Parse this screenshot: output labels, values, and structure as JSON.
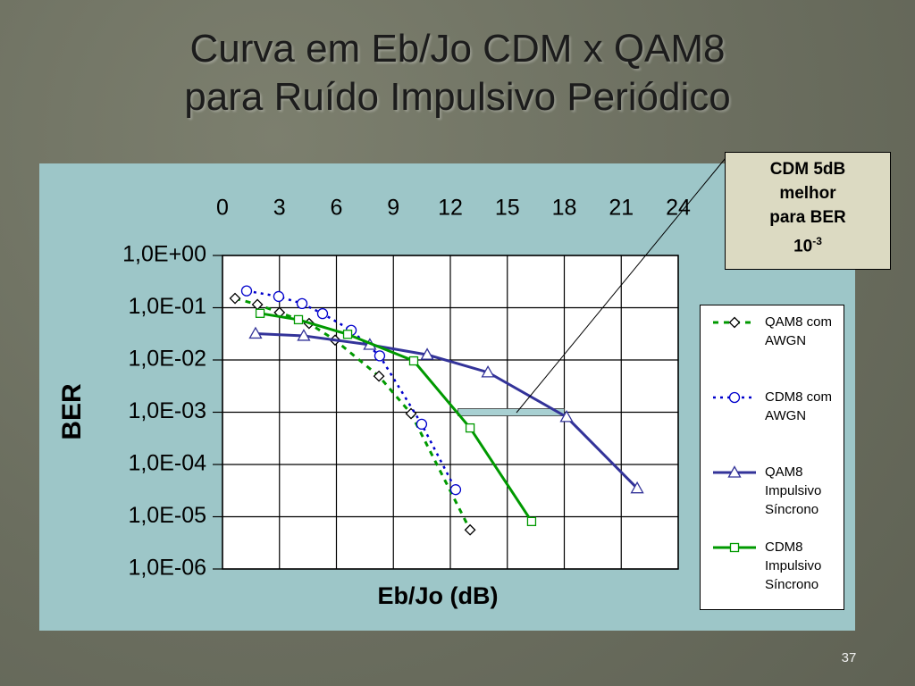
{
  "chart_data": {
    "type": "line",
    "title": [
      "Curva em Eb/Jo CDM x QAM8",
      "para Ruído Impulsivo Periódico"
    ],
    "x_label": "Eb/Jo (dB)",
    "y_label": "BER",
    "xlim": [
      0,
      24
    ],
    "xticks": [
      0,
      3,
      6,
      9,
      12,
      15,
      18,
      21,
      24
    ],
    "ylim": [
      1e-06,
      1
    ],
    "log_y": true,
    "grid": true,
    "legend": "right",
    "yticks": [
      {
        "value": 1,
        "label": "1,0E+00"
      },
      {
        "value": 0.1,
        "label": "1,0E-01"
      },
      {
        "value": 0.01,
        "label": "1,0E-02"
      },
      {
        "value": 0.001,
        "label": "1,0E-03"
      },
      {
        "value": 0.0001,
        "label": "1,0E-04"
      },
      {
        "value": 1e-05,
        "label": "1,0E-05"
      },
      {
        "value": 1e-06,
        "label": "1,0E-06"
      }
    ],
    "series": [
      {
        "name": "QAM8 com AWGN",
        "color": "#009900",
        "marker": "diamond",
        "marker_color": "#000000",
        "dash": "6 6",
        "width": 3,
        "x": [
          0.66,
          1.84,
          3.0,
          4.56,
          5.93,
          8.24,
          9.93,
          13.04
        ],
        "values": [
          0.151,
          0.115,
          0.081,
          0.05,
          0.024,
          0.0049,
          0.00094,
          5.6e-06
        ]
      },
      {
        "name": "CDM8 com AWGN",
        "color": "#0000cc",
        "marker": "circle",
        "marker_color": "#0000cc",
        "dash": "3 5",
        "width": 2.5,
        "x": [
          1.27,
          2.96,
          4.19,
          5.27,
          6.78,
          8.28,
          10.49,
          12.28
        ],
        "values": [
          0.21,
          0.164,
          0.12,
          0.077,
          0.037,
          0.012,
          0.00059,
          3.3e-05
        ]
      },
      {
        "name": "QAM8 Impulsivo Síncrono",
        "color": "#333399",
        "marker": "triangle",
        "marker_color": "#333399",
        "dash": "none",
        "width": 3,
        "x": [
          1.74,
          4.28,
          7.76,
          10.78,
          13.98,
          18.12,
          21.84
        ],
        "values": [
          0.032,
          0.029,
          0.0195,
          0.0126,
          0.0058,
          0.00081,
          3.5e-05
        ]
      },
      {
        "name": "CDM8 Impulsivo Síncrono",
        "color": "#009900",
        "marker": "square",
        "marker_color": "#009900",
        "dash": "none",
        "width": 3,
        "x": [
          1.98,
          4.0,
          6.59,
          10.07,
          13.04,
          16.28
        ],
        "values": [
          0.078,
          0.059,
          0.031,
          0.0096,
          0.0005,
          8.1e-06
        ]
      }
    ],
    "bracket": {
      "x": [
        12.4,
        18
      ],
      "y": 0.001,
      "color": "#a8d0d2"
    },
    "annotation": {
      "lines": [
        "CDM 5dB",
        "melhor",
        "para BER"
      ],
      "base": "10",
      "exponent": "-3"
    }
  },
  "slide_number": "37"
}
